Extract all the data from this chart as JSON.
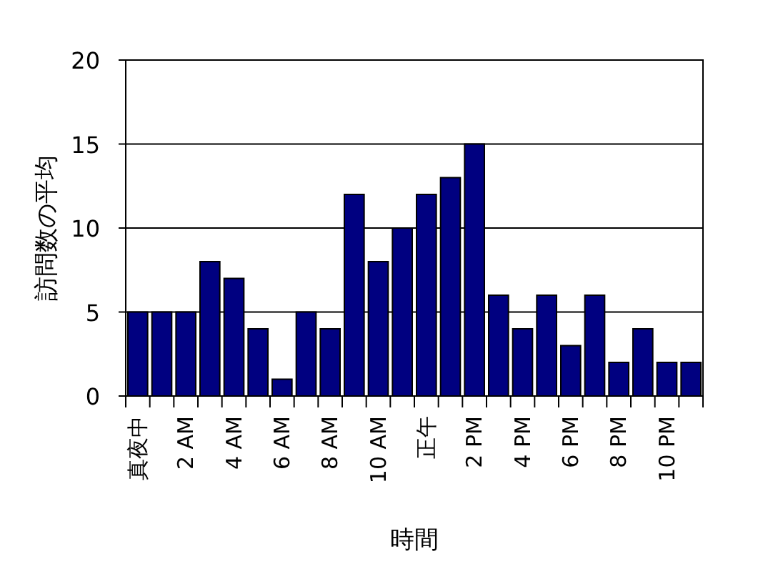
{
  "chart_data": {
    "type": "bar",
    "xlabel": "時間",
    "ylabel": "訪問数の平均",
    "categories": [
      "真夜中",
      null,
      "2 AM",
      null,
      "4 AM",
      null,
      "6 AM",
      null,
      "8 AM",
      null,
      "10 AM",
      null,
      "正午",
      null,
      "2 PM",
      null,
      "4 PM",
      null,
      "6 PM",
      null,
      "8 PM",
      null,
      "10 PM",
      null
    ],
    "values": [
      5,
      5,
      5,
      8,
      7,
      4,
      1,
      5,
      4,
      12,
      8,
      10,
      12,
      13,
      15,
      6,
      4,
      6,
      3,
      6,
      2,
      4,
      2,
      2
    ],
    "color": "#000080",
    "ylim": [
      0,
      20
    ],
    "yticks": [
      0,
      5,
      10,
      15,
      20
    ],
    "grid": "y"
  }
}
